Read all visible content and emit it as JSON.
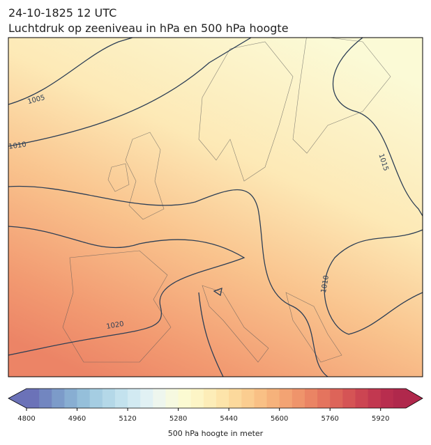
{
  "header": {
    "date": "24-10-1825 12 UTC",
    "title": "Luchtdruk op zeeniveau in hPa en 500 hPa hoogte"
  },
  "contours": [
    1005,
    1010,
    1015,
    1010,
    1020
  ],
  "colorbar": {
    "label": "500 hPa hoogte in meter",
    "lim": [
      4800,
      6000
    ],
    "ticks": [
      4800,
      4960,
      5120,
      5280,
      5440,
      5600,
      5760,
      5920
    ],
    "colors": [
      "#6b72b8",
      "#7286c0",
      "#7c9bc9",
      "#88aed2",
      "#95bfda",
      "#a5cde2",
      "#b4d8e8",
      "#c3e2ee",
      "#d2eaf2",
      "#e1f1f4",
      "#eef6ee",
      "#f6f9e0",
      "#fbfad2",
      "#fdf5c6",
      "#fdedb8",
      "#fde4aa",
      "#fcd99c",
      "#fbcd90",
      "#f9c085",
      "#f6b27b",
      "#f3a373",
      "#ef946b",
      "#ea8464",
      "#e4745e",
      "#dd6459",
      "#d55455",
      "#cc4552",
      "#c23850",
      "#b82d4e",
      "#b0284c"
    ]
  }
}
